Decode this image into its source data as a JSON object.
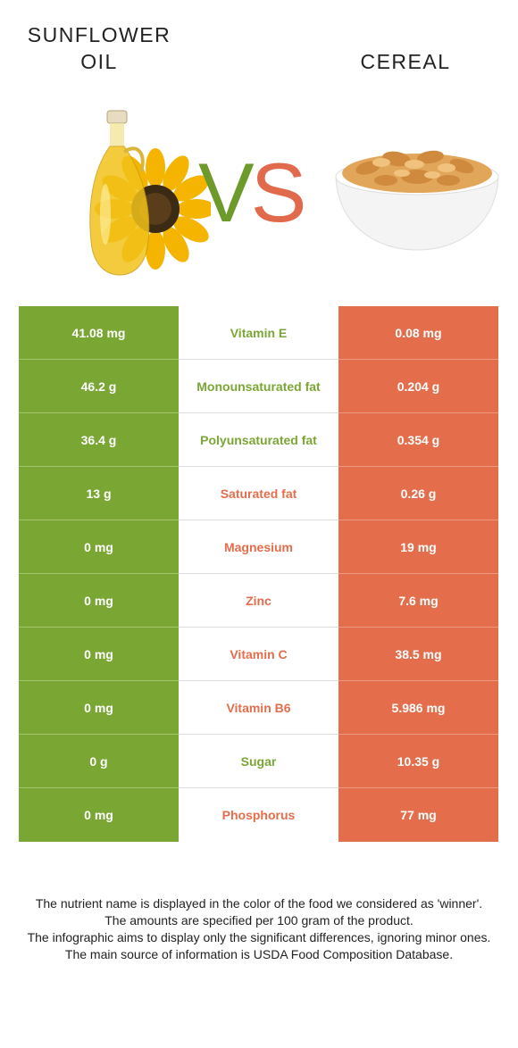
{
  "food_a": {
    "name": "SUNFLOWER OIL",
    "line1": "SUNFLOWER",
    "line2": "OIL",
    "color": "#7aa634"
  },
  "food_b": {
    "name": "CEREAL",
    "color": "#e46d4c"
  },
  "vs": {
    "v": "V",
    "s": "S"
  },
  "rows": [
    {
      "a": "41.08 mg",
      "nutrient": "Vitamin E",
      "b": "0.08 mg",
      "winner": "a"
    },
    {
      "a": "46.2 g",
      "nutrient": "Monounsaturated fat",
      "b": "0.204 g",
      "winner": "a"
    },
    {
      "a": "36.4 g",
      "nutrient": "Polyunsaturated fat",
      "b": "0.354 g",
      "winner": "a"
    },
    {
      "a": "13 g",
      "nutrient": "Saturated fat",
      "b": "0.26 g",
      "winner": "b"
    },
    {
      "a": "0 mg",
      "nutrient": "Magnesium",
      "b": "19 mg",
      "winner": "b"
    },
    {
      "a": "0 mg",
      "nutrient": "Zinc",
      "b": "7.6 mg",
      "winner": "b"
    },
    {
      "a": "0 mg",
      "nutrient": "Vitamin C",
      "b": "38.5 mg",
      "winner": "b"
    },
    {
      "a": "0 mg",
      "nutrient": "Vitamin B6",
      "b": "5.986 mg",
      "winner": "b"
    },
    {
      "a": "0 g",
      "nutrient": "Sugar",
      "b": "10.35 g",
      "winner": "a"
    },
    {
      "a": "0 mg",
      "nutrient": "Phosphorus",
      "b": "77 mg",
      "winner": "b"
    }
  ],
  "footer": [
    "The nutrient name is displayed in the color of the food we considered as 'winner'.",
    "The amounts are specified per 100 gram of the product.",
    "The infographic aims to display only the significant differences, ignoring minor ones.",
    "The main source of information is USDA Food Composition Database."
  ]
}
